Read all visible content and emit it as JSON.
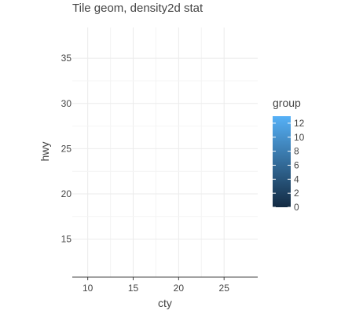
{
  "chart_data": {
    "type": "heatmap",
    "title": "Tile geom, density2d stat",
    "xlabel": "cty",
    "ylabel": "hwy",
    "x_ticks": [
      10,
      15,
      20,
      25
    ],
    "y_ticks": [
      15,
      20,
      25,
      30,
      35
    ],
    "xlim": [
      8.3,
      28.7
    ],
    "ylim": [
      10.8,
      38.4
    ],
    "grid": true,
    "legend": {
      "title": "group",
      "placement": "right",
      "ticks": [
        0,
        2,
        4,
        6,
        8,
        10,
        12
      ],
      "range": [
        0,
        13
      ],
      "color_low": "#132b43",
      "color_high": "#56b1f7"
    }
  }
}
